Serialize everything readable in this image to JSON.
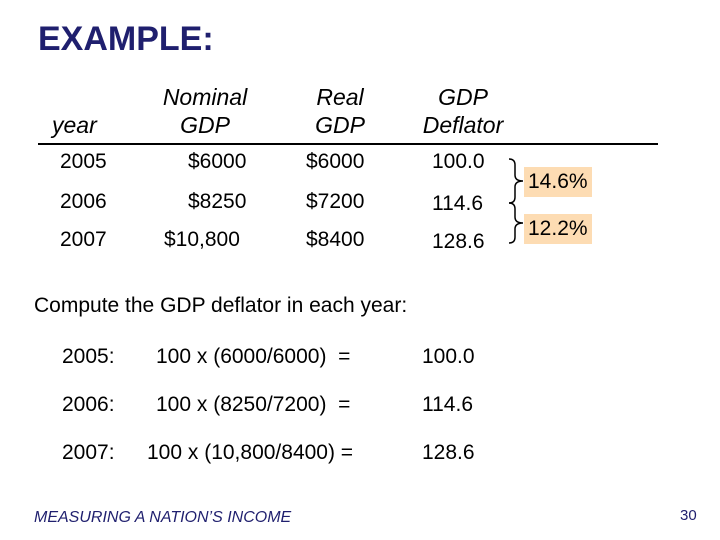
{
  "title": "EXAMPLE:",
  "table": {
    "headers": {
      "year": "year",
      "nominal_line1": "Nominal",
      "nominal_line2": "GDP",
      "real_line1": "Real",
      "real_line2": "GDP",
      "deflator_line1": "GDP",
      "deflator_line2": "Deflator"
    },
    "rows": [
      {
        "year": "2005",
        "nominal": "$6000",
        "real": "$6000",
        "deflator": "100.0"
      },
      {
        "year": "2006",
        "nominal": "$8250",
        "real": "$7200",
        "deflator": "114.6"
      },
      {
        "year": "2007",
        "nominal": "$10,800",
        "real": "$8400",
        "deflator": "128.6"
      }
    ],
    "growth": [
      "14.6%",
      "12.2%"
    ],
    "accent_color": "#fddcb3"
  },
  "subheading": "Compute the GDP deflator in each year:",
  "calculations": [
    {
      "label": "2005:",
      "formula": "100 x (6000/6000)  =",
      "result": "100.0"
    },
    {
      "label": "2006:",
      "formula": "100 x (8250/7200)  =",
      "result": "114.6"
    },
    {
      "label": "2007:",
      "formula": "100 x (10,800/8400) =",
      "result": "128.6"
    }
  ],
  "footer": "MEASURING A NATION’S INCOME",
  "page_number": "30",
  "title_color": "#1f1f6e"
}
